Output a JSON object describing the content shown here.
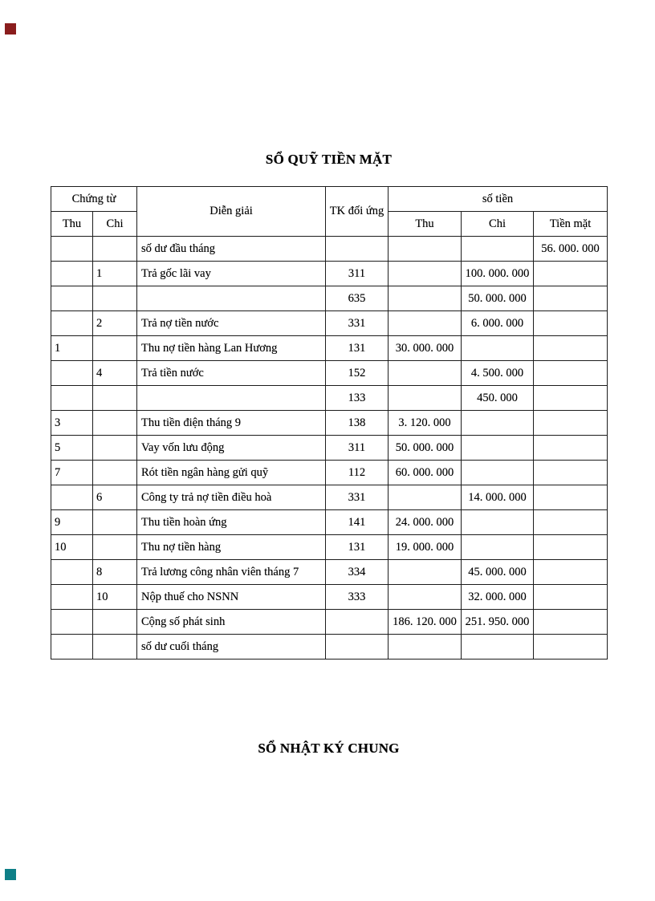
{
  "page": {
    "title_cash_book": "SỔ QUỸ TIỀN MẶT",
    "title_journal": "SỔ NHẬT KÝ CHUNG"
  },
  "decorations": {
    "top_left_marker_color": "#8a1d1d",
    "bottom_left_marker_color": "#0e7f87"
  },
  "table": {
    "header": {
      "chung_tu": "Chứng từ",
      "thu": "Thu",
      "chi": "Chi",
      "dien_giai": "Diễn giải",
      "tk_doi_ung": "TK đối ứng",
      "so_tien": "số tiền",
      "thu2": "Thu",
      "chi2": "Chi",
      "tien_mat": "Tiền mặt"
    },
    "rows": [
      {
        "ct_thu": "",
        "ct_chi": "",
        "dien_giai": "số dư đầu tháng",
        "tk": "",
        "thu": "",
        "chi": "",
        "tien_mat": "56. 000. 000"
      },
      {
        "ct_thu": "",
        "ct_chi": "1",
        "dien_giai": "Trả gốc lãi vay",
        "tk": "311",
        "thu": "",
        "chi": "100. 000. 000",
        "tien_mat": ""
      },
      {
        "ct_thu": "",
        "ct_chi": "",
        "dien_giai": "",
        "tk": "635",
        "thu": "",
        "chi": "50. 000. 000",
        "tien_mat": ""
      },
      {
        "ct_thu": "",
        "ct_chi": "2",
        "dien_giai": "Trả nợ tiền nước",
        "tk": "331",
        "thu": "",
        "chi": "6. 000. 000",
        "tien_mat": ""
      },
      {
        "ct_thu": "1",
        "ct_chi": "",
        "dien_giai": "Thu nợ tiền hàng Lan Hương",
        "tk": "131",
        "thu": "30. 000. 000",
        "chi": "",
        "tien_mat": ""
      },
      {
        "ct_thu": "",
        "ct_chi": "4",
        "dien_giai": "Trả tiền nước",
        "tk": "152",
        "thu": "",
        "chi": "4. 500. 000",
        "tien_mat": ""
      },
      {
        "ct_thu": "",
        "ct_chi": "",
        "dien_giai": "",
        "tk": "133",
        "thu": "",
        "chi": "450. 000",
        "tien_mat": ""
      },
      {
        "ct_thu": "3",
        "ct_chi": "",
        "dien_giai": "Thu tiền điện tháng 9",
        "tk": "138",
        "thu": "3. 120. 000",
        "chi": "",
        "tien_mat": ""
      },
      {
        "ct_thu": "5",
        "ct_chi": "",
        "dien_giai": "Vay vốn lưu động",
        "tk": "311",
        "thu": "50. 000. 000",
        "chi": "",
        "tien_mat": ""
      },
      {
        "ct_thu": "7",
        "ct_chi": "",
        "dien_giai": "Rót tiền ngân hàng gửi quỹ",
        "tk": "112",
        "thu": "60. 000. 000",
        "chi": "",
        "tien_mat": ""
      },
      {
        "ct_thu": "",
        "ct_chi": "6",
        "dien_giai": "Công ty trả nợ tiền điều hoà",
        "tk": "331",
        "thu": "",
        "chi": "14. 000. 000",
        "tien_mat": ""
      },
      {
        "ct_thu": "9",
        "ct_chi": "",
        "dien_giai": "Thu tiền hoàn ứng",
        "tk": "141",
        "thu": "24. 000. 000",
        "chi": "",
        "tien_mat": ""
      },
      {
        "ct_thu": "10",
        "ct_chi": "",
        "dien_giai": "Thu nợ tiền hàng",
        "tk": "131",
        "thu": "19. 000. 000",
        "chi": "",
        "tien_mat": ""
      },
      {
        "ct_thu": "",
        "ct_chi": "8",
        "dien_giai": "Trả lương công nhân viên tháng 7",
        "tk": "334",
        "thu": "",
        "chi": "45. 000. 000",
        "tien_mat": ""
      },
      {
        "ct_thu": "",
        "ct_chi": "10",
        "dien_giai": "Nộp thuế cho NSNN",
        "tk": "333",
        "thu": "",
        "chi": "32. 000. 000",
        "tien_mat": ""
      },
      {
        "ct_thu": "",
        "ct_chi": "",
        "dien_giai": "Cộng số phát sinh",
        "tk": "",
        "thu": "186. 120. 000",
        "chi": "251. 950. 000",
        "tien_mat": ""
      },
      {
        "ct_thu": "",
        "ct_chi": "",
        "dien_giai": "số dư cuối tháng",
        "tk": "",
        "thu": "",
        "chi": "",
        "tien_mat": ""
      }
    ]
  }
}
